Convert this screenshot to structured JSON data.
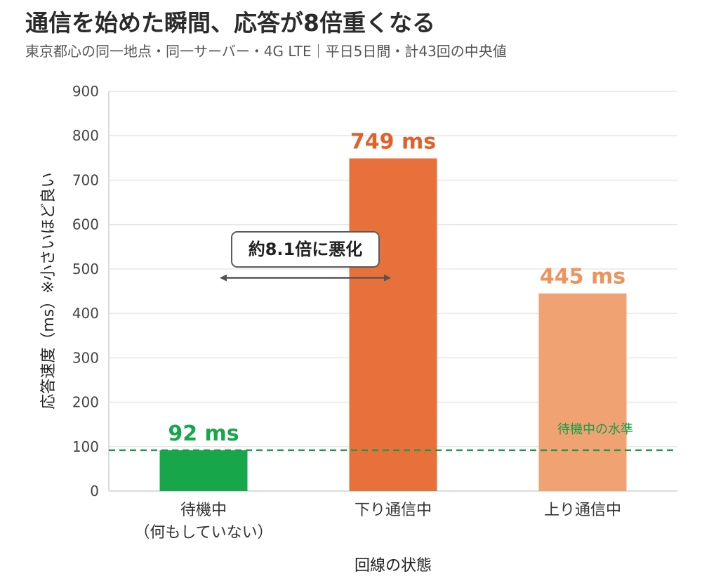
{
  "chart_data": {
    "type": "bar",
    "title": "通信を始めた瞬間、応答が8倍重くなる",
    "subtitle": "東京都心の同一地点・同一サーバー・4G LTE｜平日5日間・計43回の中央値",
    "xlabel": "回線の状態",
    "ylabel": "応答速度（ms）※小さいほど良い",
    "ylim": [
      0,
      900
    ],
    "yticks": [
      0,
      100,
      200,
      300,
      400,
      500,
      600,
      700,
      800,
      900
    ],
    "grid": true,
    "categories": [
      {
        "line1": "待機中",
        "line2": "（何もしていない）"
      },
      {
        "line1": "下り通信中",
        "line2": ""
      },
      {
        "line1": "上り通信中",
        "line2": ""
      }
    ],
    "values": [
      92,
      749,
      445
    ],
    "value_labels": [
      "92 ms",
      "749 ms",
      "445 ms"
    ],
    "colors": [
      "#17a74a",
      "#e8703a",
      "#f0a273"
    ],
    "label_colors": [
      "#17a74a",
      "#e0622a",
      "#ee935c"
    ],
    "reference_line": {
      "value": 92,
      "label": "待機中の水準",
      "color": "#1a9d47"
    },
    "annotation": {
      "label": "約8.1倍に悪化",
      "from_category": 0,
      "to_category": 1
    }
  }
}
